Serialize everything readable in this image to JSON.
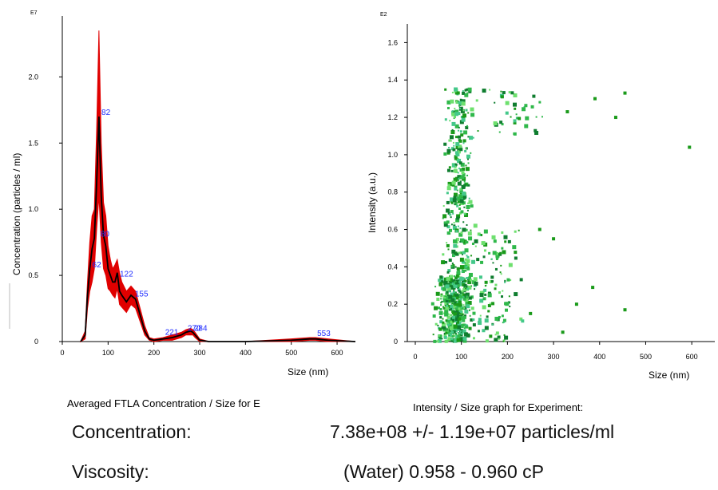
{
  "chart_data": [
    {
      "type": "line",
      "title": "Averaged FTLA Concentration / Size for E",
      "xlabel": "Size (nm)",
      "ylabel": "Concentration (particles / ml)",
      "y_exponent_label": "E7",
      "xlim": [
        0,
        640
      ],
      "ylim": [
        0,
        2.4
      ],
      "x_ticks": [
        0,
        100,
        200,
        300,
        400,
        500,
        600
      ],
      "y_ticks": [
        0,
        0.5,
        1.0,
        1.5,
        2.0
      ],
      "y_tick_labels": [
        "0",
        "0.5",
        "1.0",
        "1.5",
        "2.0"
      ],
      "series": [
        {
          "color": "#000000",
          "x": [
            40,
            50,
            55,
            60,
            65,
            70,
            75,
            80,
            85,
            90,
            95,
            100,
            105,
            110,
            115,
            120,
            125,
            130,
            140,
            150,
            160,
            170,
            180,
            190,
            200,
            220,
            240,
            260,
            270,
            280,
            285,
            290,
            300,
            320,
            400,
            500,
            540,
            553,
            580,
            640
          ],
          "y": [
            0,
            0.05,
            0.35,
            0.55,
            0.7,
            0.78,
            1.2,
            1.7,
            1.1,
            0.8,
            0.72,
            0.55,
            0.5,
            0.45,
            0.45,
            0.52,
            0.38,
            0.35,
            0.3,
            0.35,
            0.32,
            0.2,
            0.08,
            0.02,
            0.01,
            0.02,
            0.03,
            0.05,
            0.07,
            0.08,
            0.07,
            0.05,
            0.01,
            0.0,
            0.0,
            0.01,
            0.02,
            0.02,
            0.01,
            0.0
          ]
        },
        {
          "color": "#e00000",
          "upper": [
            0,
            0.08,
            0.45,
            0.75,
            0.95,
            1.0,
            1.6,
            2.35,
            1.5,
            1.05,
            0.95,
            0.72,
            0.62,
            0.55,
            0.58,
            0.62,
            0.52,
            0.45,
            0.38,
            0.42,
            0.38,
            0.25,
            0.12,
            0.03,
            0.02,
            0.03,
            0.05,
            0.07,
            0.09,
            0.1,
            0.09,
            0.07,
            0.02,
            0.0,
            0.0,
            0.02,
            0.03,
            0.03,
            0.02,
            0.0
          ],
          "lower": [
            0,
            0.02,
            0.25,
            0.38,
            0.45,
            0.55,
            0.85,
            1.1,
            0.75,
            0.55,
            0.5,
            0.4,
            0.38,
            0.35,
            0.33,
            0.4,
            0.28,
            0.26,
            0.22,
            0.28,
            0.25,
            0.15,
            0.05,
            0.01,
            0.0,
            0.01,
            0.01,
            0.03,
            0.05,
            0.05,
            0.05,
            0.03,
            0.0,
            0.0,
            0.0,
            0.0,
            0.01,
            0.01,
            0.0,
            0.0
          ]
        }
      ],
      "annotations": [
        {
          "text": "82",
          "x": 82,
          "y": 1.7
        },
        {
          "text": "80",
          "x": 80,
          "y": 0.78
        },
        {
          "text": "62",
          "x": 62,
          "y": 0.55
        },
        {
          "text": "122",
          "x": 122,
          "y": 0.48
        },
        {
          "text": "155",
          "x": 155,
          "y": 0.33
        },
        {
          "text": "221",
          "x": 221,
          "y": 0.04
        },
        {
          "text": "270",
          "x": 270,
          "y": 0.07
        },
        {
          "text": "284",
          "x": 284,
          "y": 0.07
        },
        {
          "text": "553",
          "x": 553,
          "y": 0.03
        }
      ]
    },
    {
      "type": "scatter",
      "title": "Intensity / Size graph for Experiment:",
      "xlabel": "Size (nm)",
      "ylabel": "Intensity (a.u.)",
      "y_exponent_label": "E2",
      "xlim": [
        0,
        650
      ],
      "ylim": [
        0,
        1.7
      ],
      "x_ticks": [
        0,
        100,
        200,
        300,
        400,
        500,
        600
      ],
      "y_ticks": [
        0,
        0.2,
        0.4,
        0.6,
        0.8,
        1.0,
        1.2,
        1.4,
        1.6
      ],
      "y_tick_labels": [
        "0",
        "0.2",
        "0.4",
        "0.6",
        "0.8",
        "1.0",
        "1.2",
        "1.4",
        "1.6"
      ],
      "colors": [
        "#1a9a1a",
        "#2fb84a",
        "#6ee06e",
        "#0f7d2f",
        "#44c88a"
      ],
      "clusters": [
        {
          "x_center": 85,
          "x_spread": 55,
          "y_min": 0.0,
          "y_max": 0.35,
          "count": 420
        },
        {
          "x_center": 95,
          "x_spread": 45,
          "y_min": 0.35,
          "y_max": 1.35,
          "count": 340
        },
        {
          "x_center": 170,
          "x_spread": 80,
          "y_min": 0.0,
          "y_max": 0.6,
          "count": 120
        },
        {
          "x_center": 210,
          "x_spread": 90,
          "y_min": 1.1,
          "y_max": 1.35,
          "count": 40
        }
      ],
      "outliers": [
        {
          "x": 455,
          "y": 1.33
        },
        {
          "x": 435,
          "y": 1.2
        },
        {
          "x": 390,
          "y": 1.3
        },
        {
          "x": 595,
          "y": 1.04
        },
        {
          "x": 455,
          "y": 0.17
        },
        {
          "x": 385,
          "y": 0.29
        },
        {
          "x": 350,
          "y": 0.2
        },
        {
          "x": 330,
          "y": 1.23
        },
        {
          "x": 300,
          "y": 0.55
        },
        {
          "x": 270,
          "y": 0.6
        },
        {
          "x": 250,
          "y": 0.15
        },
        {
          "x": 320,
          "y": 0.05
        }
      ]
    }
  ],
  "metrics": {
    "concentration_label": "Concentration:",
    "concentration_value": "7.38e+08 +/- 1.19e+07 particles/ml",
    "viscosity_label": "Viscosity:",
    "viscosity_value": "(Water) 0.958 - 0.960 cP"
  }
}
